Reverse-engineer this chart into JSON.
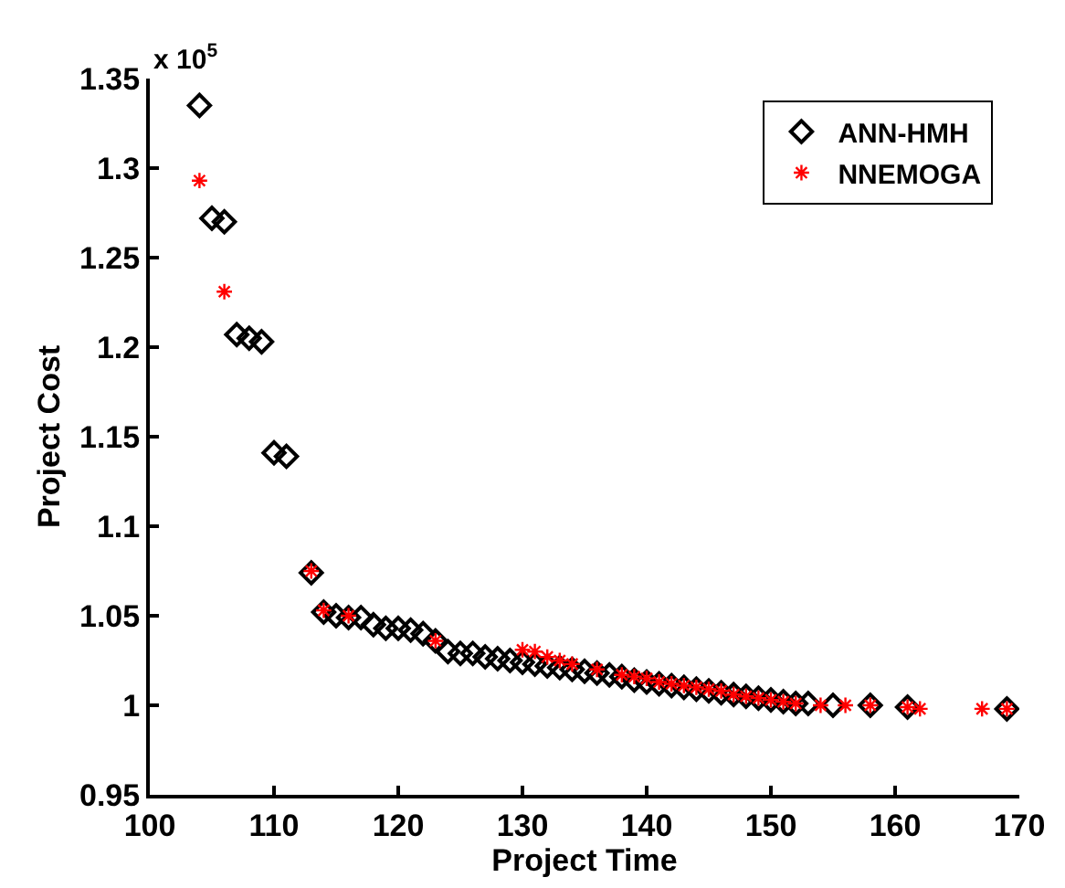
{
  "chart_data": {
    "type": "scatter",
    "xlabel": "Project Time",
    "ylabel": "Project Cost",
    "annotations": [
      "x 10$^{5}$"
    ],
    "xlim": [
      100,
      170
    ],
    "xticks": [
      100,
      110,
      120,
      130,
      140,
      150,
      160,
      170
    ],
    "ylim": [
      0.95,
      1.35
    ],
    "yticks": [
      0.95,
      1,
      1.05,
      1.1,
      1.15,
      1.2,
      1.25,
      1.3,
      1.35
    ],
    "grid": false,
    "legend": "top right",
    "series": [
      {
        "name": "ANN-HMH",
        "color": "#000000",
        "marker": "diamond",
        "x": [
          104,
          105,
          106,
          107,
          108,
          109,
          110,
          111,
          113,
          114,
          115,
          116,
          117,
          118,
          119,
          120,
          121,
          122,
          123,
          124,
          125,
          126,
          127,
          128,
          129,
          130,
          131,
          132,
          133,
          134,
          135,
          136,
          137,
          138,
          139,
          140,
          141,
          142,
          143,
          144,
          145,
          146,
          147,
          148,
          149,
          150,
          151,
          152,
          153,
          155,
          158,
          161,
          169
        ],
        "values": [
          1.335,
          1.272,
          1.27,
          1.207,
          1.205,
          1.203,
          1.141,
          1.139,
          1.074,
          1.052,
          1.05,
          1.049,
          1.049,
          1.045,
          1.043,
          1.043,
          1.042,
          1.04,
          1.036,
          1.03,
          1.029,
          1.029,
          1.027,
          1.026,
          1.025,
          1.024,
          1.023,
          1.022,
          1.021,
          1.02,
          1.019,
          1.018,
          1.017,
          1.016,
          1.014,
          1.013,
          1.012,
          1.011,
          1.01,
          1.009,
          1.008,
          1.007,
          1.006,
          1.005,
          1.004,
          1.003,
          1.002,
          1.001,
          1.001,
          1.0,
          1.0,
          0.999,
          0.998
        ]
      },
      {
        "name": "NNEMOGA",
        "color": "#ff0000",
        "marker": "cross",
        "x": [
          104,
          106,
          113,
          114,
          116,
          123,
          130,
          131,
          132,
          133,
          134,
          136,
          138,
          139,
          140,
          141,
          142,
          143,
          144,
          145,
          146,
          147,
          148,
          149,
          150,
          151,
          152,
          154,
          156,
          158,
          161,
          162,
          167,
          169
        ],
        "values": [
          1.293,
          1.231,
          1.075,
          1.053,
          1.05,
          1.036,
          1.031,
          1.03,
          1.027,
          1.025,
          1.023,
          1.02,
          1.017,
          1.016,
          1.015,
          1.013,
          1.012,
          1.011,
          1.01,
          1.009,
          1.008,
          1.006,
          1.005,
          1.004,
          1.003,
          1.002,
          1.001,
          1.0,
          1.0,
          1.0,
          0.999,
          0.998,
          0.998,
          0.998
        ]
      }
    ]
  }
}
